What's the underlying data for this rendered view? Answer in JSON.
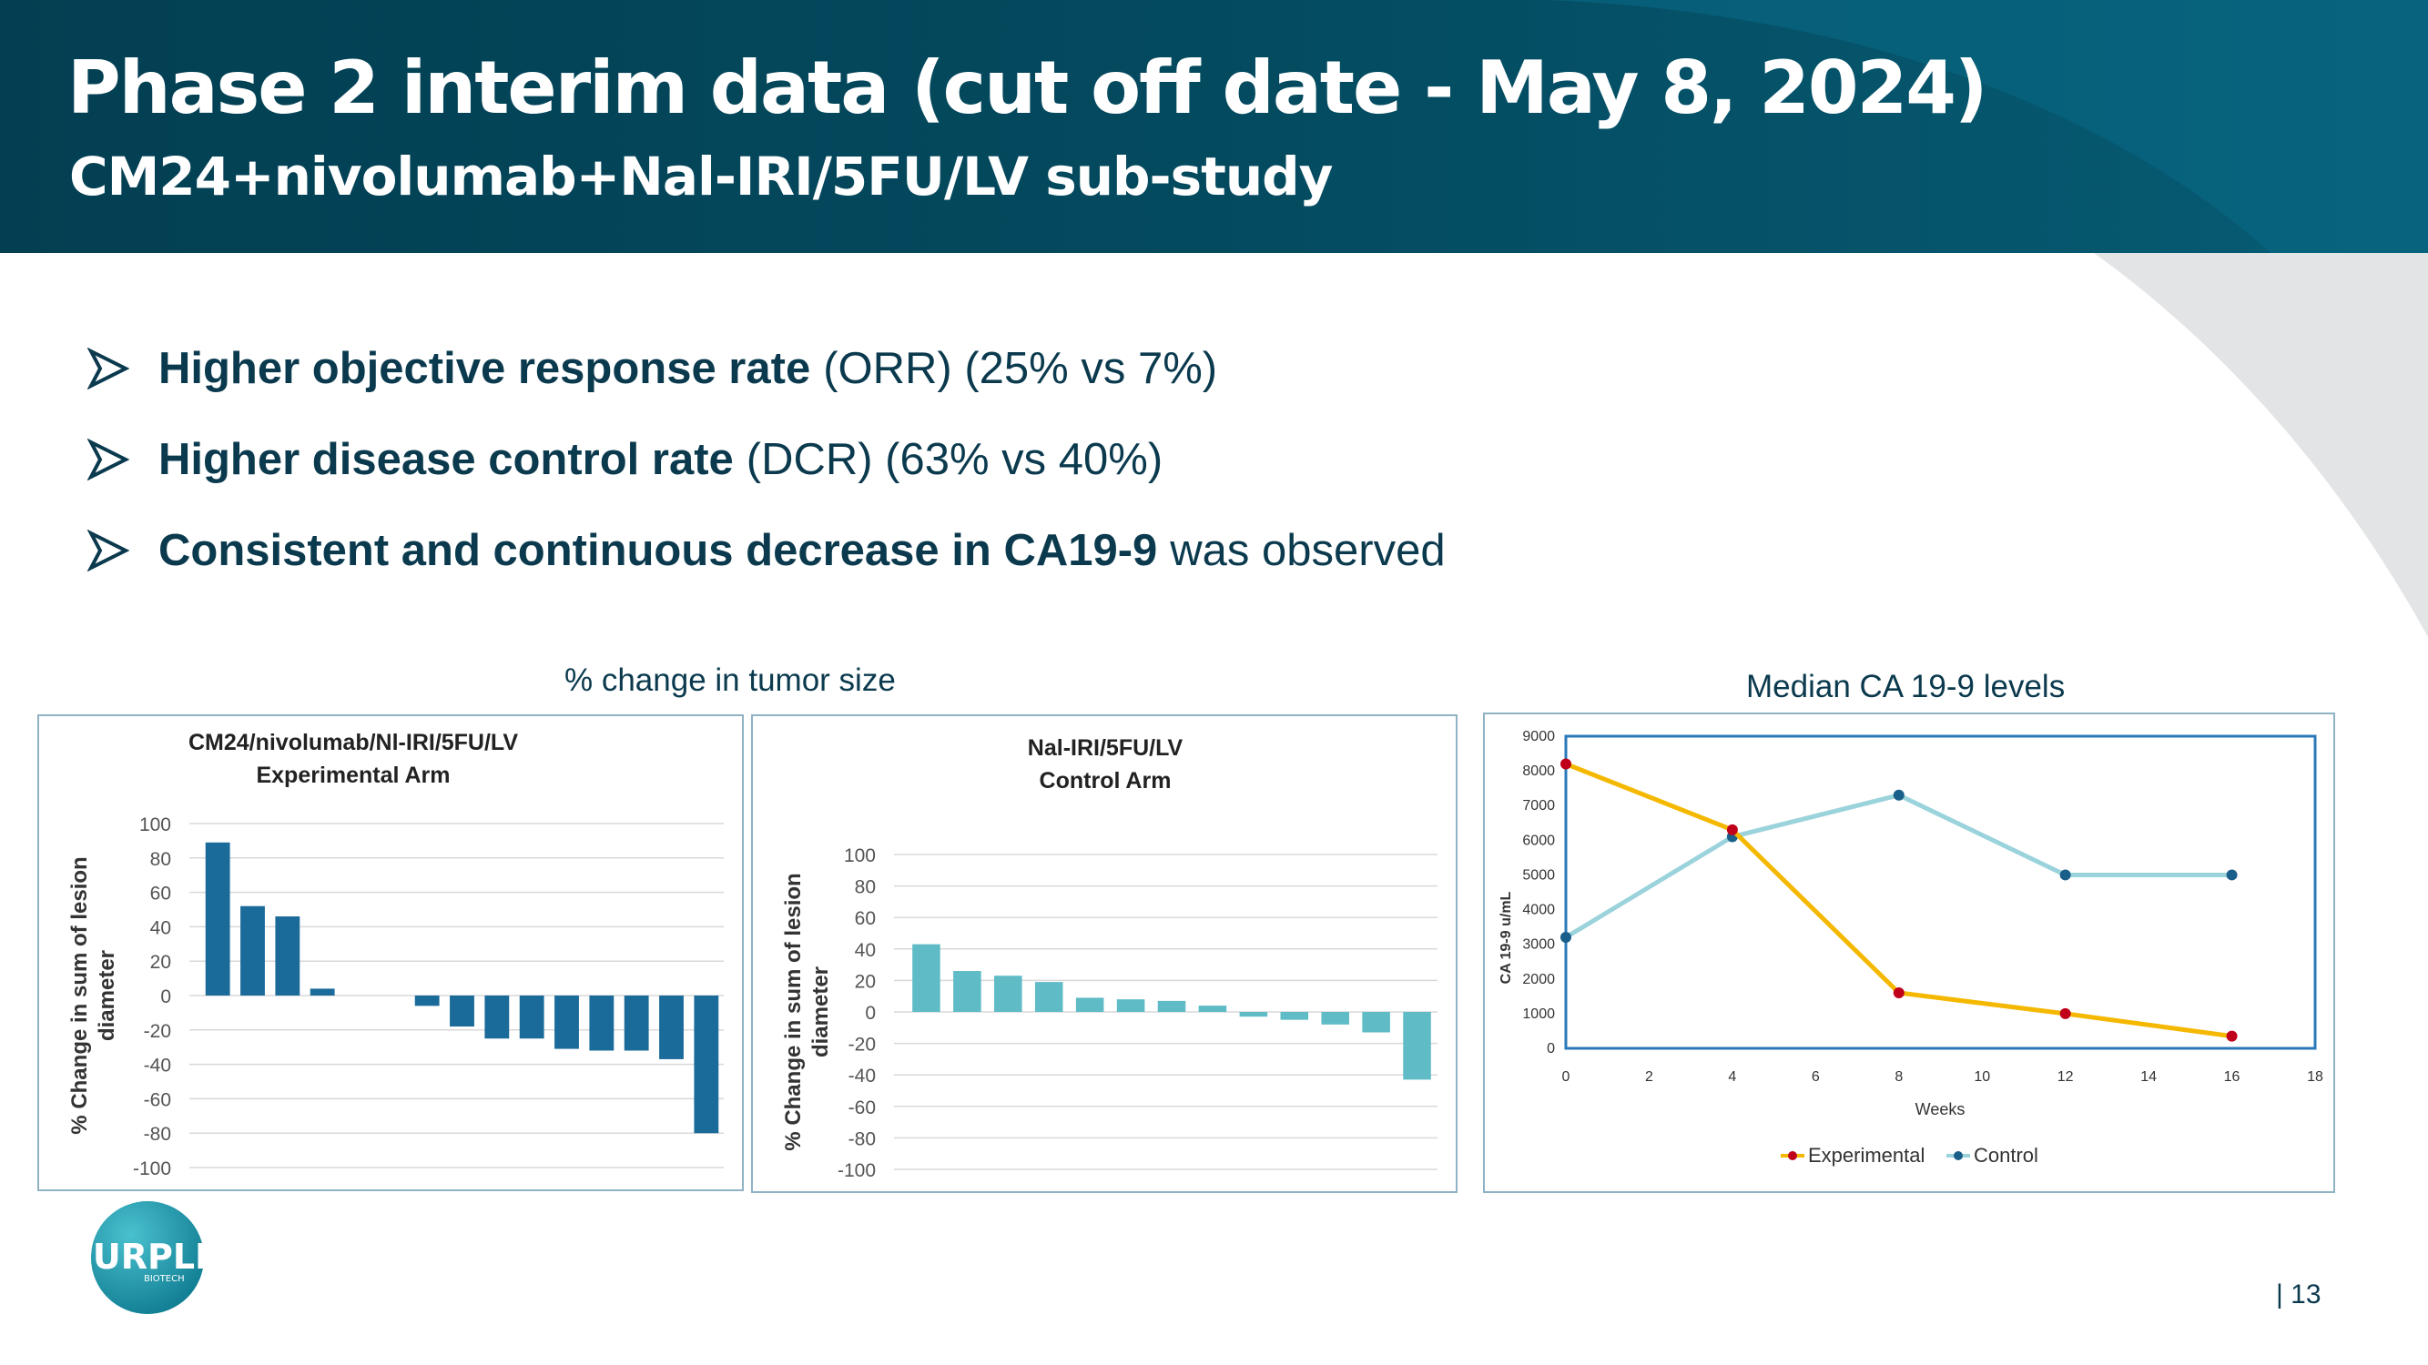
{
  "header": {
    "title": "Phase 2 interim data (cut off date - May 8, 2024)",
    "subtitle": "CM24+nivolumab+Nal-IRI/5FU/LV sub-study"
  },
  "bullets": [
    {
      "bold": "Higher objective response rate",
      "rest": "(ORR) (25% vs 7%)"
    },
    {
      "bold": "Higher disease control rate",
      "rest": "(DCR) (63% vs 40%)"
    },
    {
      "bold": "Consistent and continuous decrease in CA19-9",
      "rest": "was observed"
    }
  ],
  "labels": {
    "tumor_size": "% change in tumor size",
    "ca199": "Median CA 19-9 levels"
  },
  "logo": {
    "text": "PURPLE",
    "subtext": "BIOTECH"
  },
  "page": "| 13",
  "colors": {
    "header_dark": "#033f52",
    "experimental_bar": "#1a6a9a",
    "control_bar": "#5fbcc6",
    "experimental_line": "#f5b800",
    "control_line": "#9ad3dc",
    "experimental_marker": "#c0001a",
    "control_marker": "#1a5f8a"
  },
  "chart_data": [
    {
      "type": "bar",
      "title": "CM24/nivolumab/Nl-IRI/5FU/LV",
      "subtitle": "Experimental Arm",
      "ylabel": "% Change in sum of lesion diameter",
      "ylabel_lines": [
        "% Change in sum of lesion",
        "diameter"
      ],
      "ylim": [
        -100,
        100
      ],
      "yticks": [
        100,
        80,
        60,
        40,
        20,
        0,
        -20,
        -40,
        -60,
        -80,
        -100
      ],
      "grid": true,
      "values": [
        89,
        52,
        46,
        4,
        0,
        0,
        -6,
        -18,
        -25,
        -25,
        -31,
        -32,
        -32,
        -37,
        -80
      ]
    },
    {
      "type": "bar",
      "title": "Nal-IRI/5FU/LV",
      "subtitle": "Control Arm",
      "ylabel": "% Change in sum of lesion diameter",
      "ylabel_lines": [
        "% Change in sum of lesion",
        "diameter"
      ],
      "ylim": [
        -100,
        100
      ],
      "yticks": [
        100,
        80,
        60,
        40,
        20,
        0,
        -20,
        -40,
        -60,
        -80,
        -100
      ],
      "grid": true,
      "values": [
        43,
        26,
        23,
        19,
        9,
        8,
        7,
        4,
        -3,
        -5,
        -8,
        -13,
        -43
      ]
    },
    {
      "type": "line",
      "title": "Median CA 19-9 levels",
      "xlabel": "Weeks",
      "ylabel": "CA 19-9 u/mL",
      "xlim": [
        0,
        18
      ],
      "ylim": [
        0,
        9000
      ],
      "xticks": [
        0,
        2,
        4,
        6,
        8,
        10,
        12,
        14,
        16,
        18
      ],
      "yticks": [
        0,
        1000,
        2000,
        3000,
        4000,
        5000,
        6000,
        7000,
        8000,
        9000
      ],
      "legend": "bottom",
      "series": [
        {
          "name": "Experimental",
          "x": [
            0,
            4,
            8,
            12,
            16
          ],
          "values": [
            8200,
            6300,
            1600,
            1000,
            350
          ]
        },
        {
          "name": "Control",
          "x": [
            0,
            4,
            8,
            12,
            16
          ],
          "values": [
            3200,
            6100,
            7300,
            5000,
            5000
          ]
        }
      ]
    }
  ]
}
